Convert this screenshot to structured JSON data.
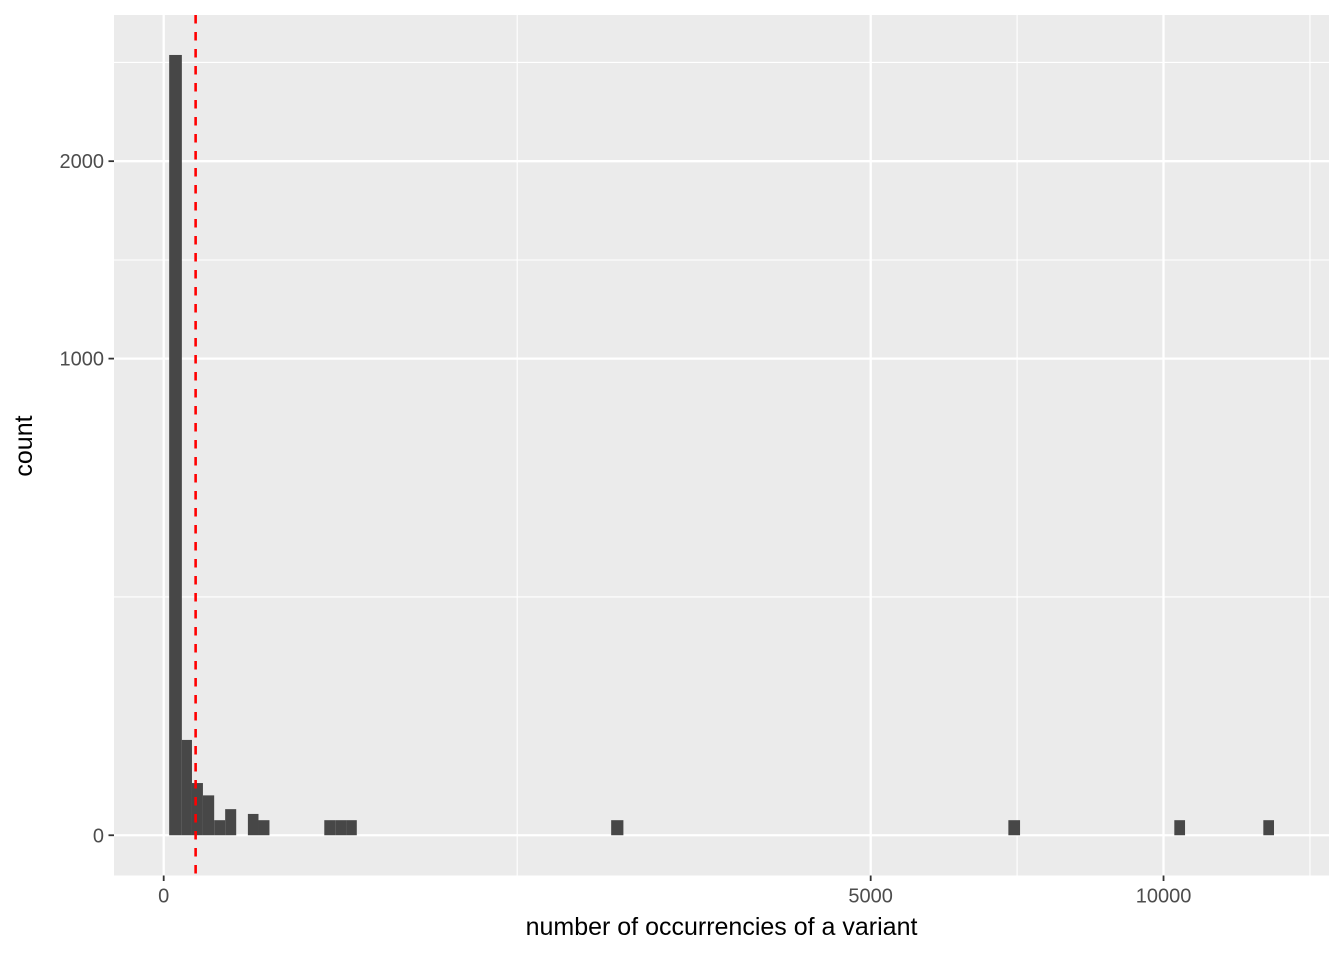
{
  "chart_data": {
    "type": "bar",
    "subtype": "histogram",
    "title": "",
    "xlabel": "number of occurrencies of a variant",
    "ylabel": "count",
    "x_scale": "sqrt",
    "y_scale": "sqrt",
    "x_ticks": [
      0,
      5000,
      10000
    ],
    "y_ticks": [
      0,
      1000,
      2000
    ],
    "x_minor_sqrt": [
      35.355,
      85.355,
      114.645
    ],
    "y_minor_sqrt": [
      15.811,
      38.166,
      51.272
    ],
    "xlim_sqrt": [
      -4.97,
      116.55
    ],
    "ylim_sqrt": [
      -2.67,
      54.42
    ],
    "grid": "on",
    "legend": "none",
    "bars": [
      {
        "x1": 0.3,
        "x2": 3.3,
        "count": 2680
      },
      {
        "x1": 3.3,
        "x2": 8.0,
        "count": 40
      },
      {
        "x1": 8.0,
        "x2": 15.4,
        "count": 12
      },
      {
        "x1": 15.4,
        "x2": 25.5,
        "count": 7
      },
      {
        "x1": 25.5,
        "x2": 37.8,
        "count": 1
      },
      {
        "x1": 37.8,
        "x2": 52.6,
        "count": 3
      },
      {
        "x1": 70.9,
        "x2": 89.9,
        "count": 2
      },
      {
        "x1": 89.9,
        "x2": 111.9,
        "count": 1
      },
      {
        "x1": 258,
        "x2": 296,
        "count": 1
      },
      {
        "x1": 296,
        "x2": 334,
        "count": 1
      },
      {
        "x1": 334,
        "x2": 373,
        "count": 1
      },
      {
        "x1": 2003,
        "x2": 2114,
        "count": 1
      },
      {
        "x1": 7137,
        "x2": 7336,
        "count": 1
      },
      {
        "x1": 10217,
        "x2": 10435,
        "count": 1
      },
      {
        "x1": 12096,
        "x2": 12332,
        "count": 1
      }
    ],
    "vline": {
      "x": 10.2,
      "style": "dashed",
      "color": "#FF0000"
    },
    "colors": {
      "panel_bg": "#EBEBEB",
      "bar_fill": "#474747",
      "grid": "#FFFFFF",
      "tick_label": "#4D4D4D",
      "tick_mark": "#333333",
      "axis_title": "#000000"
    }
  }
}
